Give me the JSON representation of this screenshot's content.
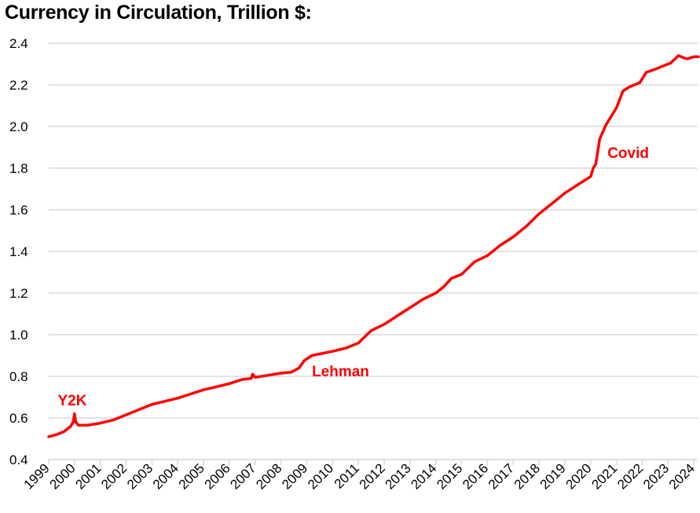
{
  "chart_data": {
    "type": "line",
    "title": "Currency in Circulation, Trillion $:",
    "xlabel": "",
    "ylabel": "",
    "xlim": [
      1999,
      2024.17
    ],
    "ylim": [
      0.4,
      2.4
    ],
    "yticks": [
      "0.4",
      "0.6",
      "0.8",
      "1.0",
      "1.2",
      "1.4",
      "1.6",
      "1.8",
      "2.0",
      "2.2",
      "2.4"
    ],
    "xticks": [
      "1999",
      "2000",
      "2001",
      "2002",
      "2003",
      "2004",
      "2005",
      "2006",
      "2007",
      "2008",
      "2009",
      "2010",
      "2011",
      "2012",
      "2013",
      "2014",
      "2015",
      "2016",
      "2017",
      "2018",
      "2019",
      "2020",
      "2021",
      "2022",
      "2023",
      "2024"
    ],
    "grid": true,
    "legend": "none",
    "series": [
      {
        "name": "Currency in Circulation",
        "color": "#ff0000",
        "x": [
          1999.0,
          1999.3,
          1999.6,
          1999.85,
          1999.95,
          2000.0,
          2000.05,
          2000.15,
          2000.5,
          2001.0,
          2001.5,
          2002.0,
          2002.5,
          2003.0,
          2003.5,
          2004.0,
          2004.5,
          2005.0,
          2005.5,
          2006.0,
          2006.5,
          2006.85,
          2006.9,
          2007.0,
          2007.5,
          2008.0,
          2008.4,
          2008.7,
          2008.9,
          2009.2,
          2009.6,
          2010.0,
          2010.5,
          2011.0,
          2011.5,
          2012.0,
          2012.5,
          2013.0,
          2013.5,
          2014.0,
          2014.3,
          2014.6,
          2015.0,
          2015.5,
          2016.0,
          2016.5,
          2017.0,
          2017.5,
          2018.0,
          2018.5,
          2019.0,
          2019.5,
          2020.0,
          2020.1,
          2020.2,
          2020.35,
          2020.6,
          2021.0,
          2021.25,
          2021.5,
          2021.9,
          2022.15,
          2022.5,
          2022.8,
          2023.1,
          2023.4,
          2023.6,
          2023.75,
          2024.0,
          2024.17
        ],
        "y": [
          0.51,
          0.52,
          0.535,
          0.56,
          0.58,
          0.62,
          0.58,
          0.565,
          0.565,
          0.575,
          0.59,
          0.615,
          0.64,
          0.665,
          0.68,
          0.695,
          0.715,
          0.735,
          0.75,
          0.765,
          0.785,
          0.79,
          0.81,
          0.795,
          0.805,
          0.815,
          0.82,
          0.84,
          0.875,
          0.9,
          0.91,
          0.92,
          0.935,
          0.96,
          1.02,
          1.05,
          1.09,
          1.13,
          1.17,
          1.2,
          1.23,
          1.27,
          1.29,
          1.35,
          1.38,
          1.43,
          1.47,
          1.52,
          1.58,
          1.63,
          1.68,
          1.72,
          1.76,
          1.8,
          1.82,
          1.94,
          2.01,
          2.09,
          2.17,
          2.19,
          2.21,
          2.26,
          2.275,
          2.29,
          2.305,
          2.34,
          2.33,
          2.325,
          2.335,
          2.335
        ]
      }
    ],
    "annotations": [
      {
        "text": "Y2K",
        "x": 1999.35,
        "y": 0.66,
        "color": "#ff0000"
      },
      {
        "text": "Lehman",
        "x": 2009.2,
        "y": 0.8,
        "color": "#ff0000"
      },
      {
        "text": "Covid",
        "x": 2020.65,
        "y": 1.85,
        "color": "#ff0000"
      }
    ],
    "gridline_color": "#d9d9d9"
  }
}
